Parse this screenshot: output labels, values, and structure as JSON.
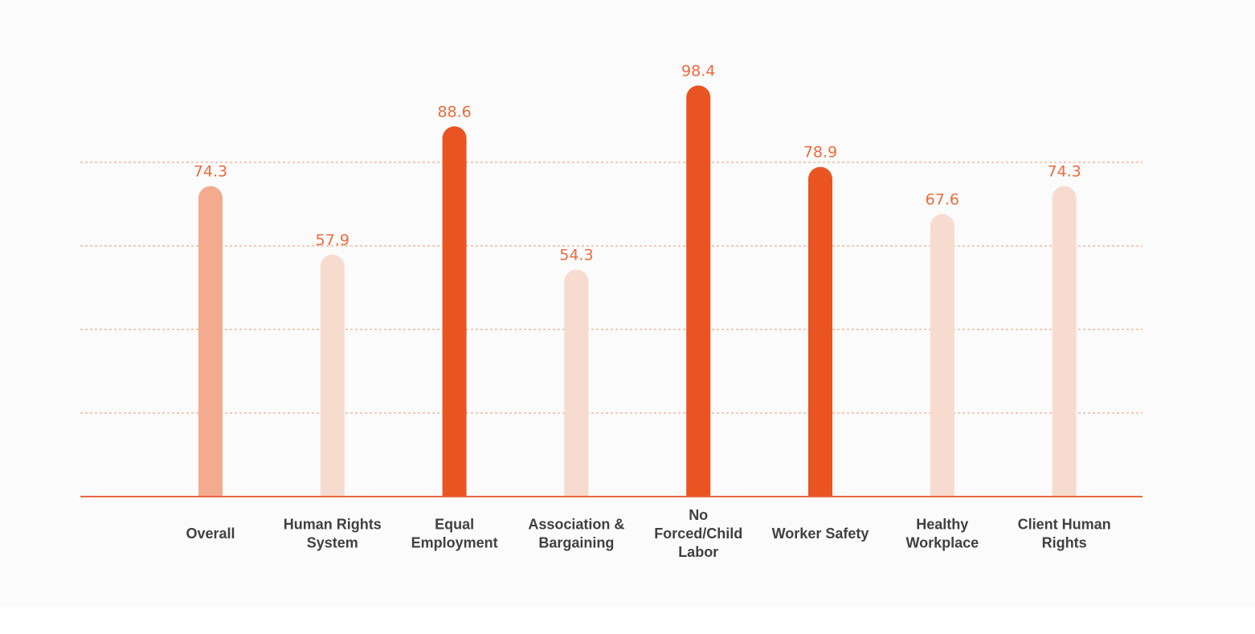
{
  "chart_data": {
    "type": "bar",
    "title": "",
    "xlabel": "",
    "ylabel": "",
    "ylim": [
      0,
      100
    ],
    "grid": true,
    "categories": [
      [
        "Overall"
      ],
      [
        "Human Rights",
        "System"
      ],
      [
        "Equal",
        "Employment"
      ],
      [
        "Association &",
        "Bargaining"
      ],
      [
        "No",
        "Forced/Child",
        "Labor"
      ],
      [
        "Worker Safety"
      ],
      [
        "Healthy",
        "Workplace"
      ],
      [
        "Client Human",
        "Rights"
      ]
    ],
    "values": [
      74.3,
      57.9,
      88.6,
      54.3,
      98.4,
      78.9,
      67.6,
      74.3
    ],
    "value_labels": [
      "74.3",
      "57.9",
      "88.6",
      "54.3",
      "98.4",
      "78.9",
      "67.6",
      "74.3"
    ],
    "bar_colors": [
      "#f4aa8e",
      "#f8dbcf",
      "#e95422",
      "#f8dbcf",
      "#e95422",
      "#e95422",
      "#f8dbcf",
      "#f8dbcf"
    ],
    "label_color": "#ee6a3f",
    "axis_color": "#e8693f",
    "gridline_color": "#f2a98e",
    "gridline_values": [
      20,
      40,
      60,
      80
    ]
  }
}
